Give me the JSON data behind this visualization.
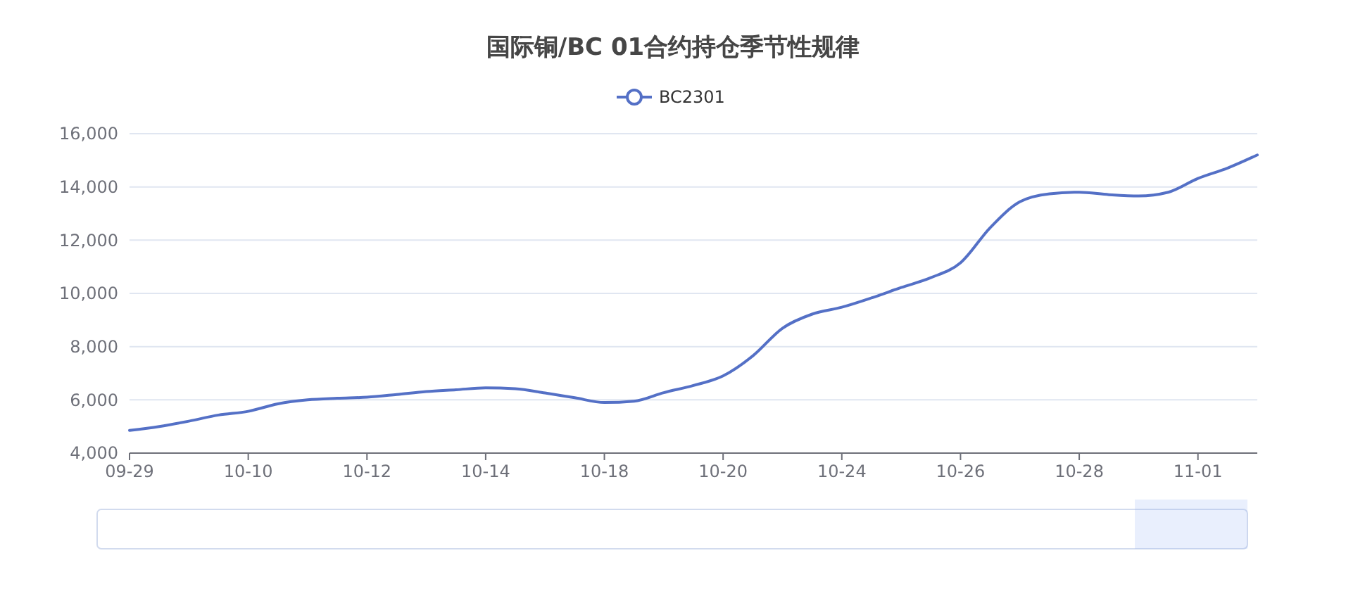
{
  "chart_data": {
    "type": "line",
    "title": "国际铜/BC 01合约持仓季节性规律",
    "categories": [
      "09-29",
      null,
      null,
      null,
      "10-10",
      null,
      null,
      null,
      "10-12",
      null,
      null,
      null,
      "10-14",
      null,
      null,
      null,
      "10-18",
      null,
      null,
      null,
      "10-20",
      null,
      null,
      null,
      "10-24",
      null,
      null,
      null,
      "10-26",
      null,
      null,
      null,
      "10-28",
      null,
      null,
      null,
      "11-01",
      null,
      null
    ],
    "series": [
      {
        "name": "BC2301",
        "color": "#5470c6",
        "values": [
          4850,
          5000,
          5200,
          5430,
          5570,
          5850,
          6000,
          6060,
          6100,
          6200,
          6310,
          6380,
          6450,
          6420,
          6260,
          6080,
          5900,
          5950,
          6270,
          6540,
          6900,
          7650,
          8690,
          9220,
          9480,
          9830,
          10220,
          10590,
          11150,
          12470,
          13440,
          13740,
          13800,
          13710,
          13660,
          13800,
          14320,
          14710,
          15200
        ]
      }
    ],
    "ylim": [
      4000,
      16000
    ],
    "yticks": [
      {
        "value": 4000,
        "label": "4,000"
      },
      {
        "value": 6000,
        "label": "6,000"
      },
      {
        "value": 8000,
        "label": "8,000"
      },
      {
        "value": 10000,
        "label": "10,000"
      },
      {
        "value": 12000,
        "label": "12,000"
      },
      {
        "value": 14000,
        "label": "14,000"
      },
      {
        "value": 16000,
        "label": "16,000"
      }
    ],
    "grid": "y",
    "legend": "top",
    "marker": "none",
    "line_style": "solid"
  }
}
